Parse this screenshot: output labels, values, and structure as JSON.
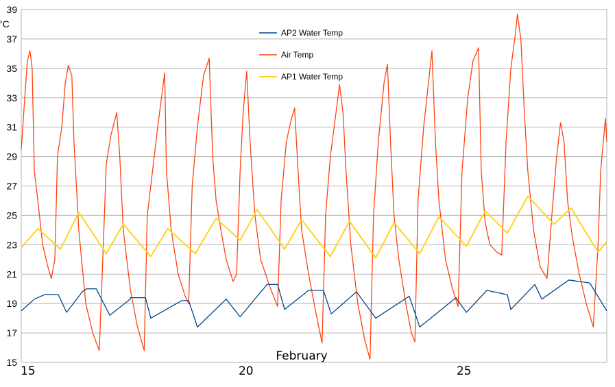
{
  "chart_data": {
    "type": "line",
    "ylabel": "°C",
    "xlabel": "February",
    "ylim": [
      15,
      39
    ],
    "yticks": [
      15,
      17,
      19,
      21,
      23,
      25,
      27,
      29,
      31,
      33,
      35,
      37,
      39
    ],
    "xlim": [
      15,
      28.43
    ],
    "xticks": [
      15,
      20,
      25
    ],
    "grid": true,
    "legend_position": "top-center",
    "series": [
      {
        "name": "AP2 Water Temp",
        "color": "#004586",
        "points": [
          [
            15,
            18.5
          ],
          [
            15.3,
            19.3
          ],
          [
            15.53,
            19.6
          ],
          [
            15.85,
            19.6
          ],
          [
            16.04,
            18.4
          ],
          [
            16.4,
            19.8
          ],
          [
            16.5,
            20
          ],
          [
            16.72,
            20
          ],
          [
            17.03,
            18.2
          ],
          [
            17.5,
            19.3
          ],
          [
            17.5,
            19.4
          ],
          [
            17.85,
            19.4
          ],
          [
            17.97,
            18
          ],
          [
            18.68,
            19.2
          ],
          [
            18.84,
            19.2
          ],
          [
            19.04,
            17.4
          ],
          [
            19.7,
            19.3
          ],
          [
            20.02,
            18.1
          ],
          [
            20.64,
            20.3
          ],
          [
            20.88,
            20.3
          ],
          [
            21.04,
            18.6
          ],
          [
            21.59,
            19.9
          ],
          [
            21.93,
            19.9
          ],
          [
            22.11,
            18.3
          ],
          [
            22.69,
            19.8
          ],
          [
            23.13,
            18
          ],
          [
            23.9,
            19.5
          ],
          [
            24.14,
            17.4
          ],
          [
            24.97,
            19.4
          ],
          [
            25.21,
            18.4
          ],
          [
            25.68,
            19.9
          ],
          [
            26.15,
            19.6
          ],
          [
            26.23,
            18.6
          ],
          [
            26.78,
            20.3
          ],
          [
            26.94,
            19.3
          ],
          [
            27.56,
            20.6
          ],
          [
            28.04,
            20.4
          ],
          [
            28.43,
            18.5
          ]
        ]
      },
      {
        "name": "Air Temp",
        "color": "#ff420e",
        "points": [
          [
            15,
            29.5
          ],
          [
            15.08,
            33
          ],
          [
            15.14,
            35.5
          ],
          [
            15.2,
            36.2
          ],
          [
            15.25,
            35
          ],
          [
            15.3,
            28
          ],
          [
            15.38,
            26
          ],
          [
            15.49,
            23
          ],
          [
            15.61,
            21.5
          ],
          [
            15.69,
            20.7
          ],
          [
            15.77,
            22
          ],
          [
            15.83,
            29
          ],
          [
            15.93,
            31
          ],
          [
            16.01,
            34
          ],
          [
            16.08,
            35.2
          ],
          [
            16.16,
            34.5
          ],
          [
            16.21,
            30
          ],
          [
            16.32,
            24
          ],
          [
            16.48,
            19
          ],
          [
            16.64,
            17
          ],
          [
            16.79,
            15.8
          ],
          [
            16.87,
            22
          ],
          [
            16.95,
            28.5
          ],
          [
            17.06,
            30.5
          ],
          [
            17.19,
            32
          ],
          [
            17.26,
            29
          ],
          [
            17.34,
            24
          ],
          [
            17.5,
            20
          ],
          [
            17.66,
            17.5
          ],
          [
            17.82,
            15.8
          ],
          [
            17.89,
            25
          ],
          [
            18.01,
            28
          ],
          [
            18.13,
            31
          ],
          [
            18.29,
            34.7
          ],
          [
            18.33,
            28
          ],
          [
            18.44,
            24
          ],
          [
            18.6,
            21
          ],
          [
            18.76,
            19.5
          ],
          [
            18.84,
            19
          ],
          [
            18.92,
            27
          ],
          [
            19.04,
            31
          ],
          [
            19.18,
            34.5
          ],
          [
            19.31,
            35.7
          ],
          [
            19.39,
            29
          ],
          [
            19.47,
            26
          ],
          [
            19.58,
            24
          ],
          [
            19.7,
            22
          ],
          [
            19.86,
            20.5
          ],
          [
            19.94,
            21
          ],
          [
            20.02,
            28
          ],
          [
            20.09,
            32
          ],
          [
            20.17,
            34.8
          ],
          [
            20.25,
            30
          ],
          [
            20.36,
            25
          ],
          [
            20.49,
            22
          ],
          [
            20.72,
            20
          ],
          [
            20.88,
            18.8
          ],
          [
            20.96,
            26
          ],
          [
            21.08,
            30
          ],
          [
            21.19,
            31.5
          ],
          [
            21.27,
            32.3
          ],
          [
            21.35,
            28
          ],
          [
            21.43,
            24
          ],
          [
            21.59,
            21
          ],
          [
            21.75,
            18.5
          ],
          [
            21.9,
            16.3
          ],
          [
            21.98,
            25
          ],
          [
            22.09,
            29
          ],
          [
            22.22,
            32
          ],
          [
            22.3,
            33.9
          ],
          [
            22.38,
            32
          ],
          [
            22.45,
            28
          ],
          [
            22.56,
            23
          ],
          [
            22.72,
            19
          ],
          [
            22.88,
            16.5
          ],
          [
            23.0,
            15.2
          ],
          [
            23.08,
            25
          ],
          [
            23.19,
            30
          ],
          [
            23.32,
            34
          ],
          [
            23.4,
            35.3
          ],
          [
            23.47,
            30
          ],
          [
            23.55,
            25
          ],
          [
            23.66,
            22
          ],
          [
            23.82,
            19
          ],
          [
            23.95,
            17
          ],
          [
            24.03,
            16.4
          ],
          [
            24.1,
            26
          ],
          [
            24.23,
            31
          ],
          [
            24.34,
            34
          ],
          [
            24.42,
            36.2
          ],
          [
            24.5,
            30
          ],
          [
            24.58,
            26
          ],
          [
            24.73,
            22
          ],
          [
            24.89,
            20
          ],
          [
            25.02,
            18.8
          ],
          [
            25.11,
            28
          ],
          [
            25.24,
            33
          ],
          [
            25.36,
            35.5
          ],
          [
            25.49,
            36.4
          ],
          [
            25.55,
            28
          ],
          [
            25.64,
            24.5
          ],
          [
            25.75,
            23
          ],
          [
            25.91,
            22.5
          ],
          [
            26.02,
            22.3
          ],
          [
            26.12,
            30
          ],
          [
            26.23,
            35
          ],
          [
            26.34,
            37.5
          ],
          [
            26.38,
            38.7
          ],
          [
            26.46,
            37
          ],
          [
            26.54,
            32
          ],
          [
            26.62,
            28
          ],
          [
            26.75,
            24
          ],
          [
            26.9,
            21.5
          ],
          [
            27.06,
            20.7
          ],
          [
            27.17,
            25
          ],
          [
            27.28,
            29
          ],
          [
            27.37,
            31.3
          ],
          [
            27.45,
            30
          ],
          [
            27.53,
            26
          ],
          [
            27.64,
            23.5
          ],
          [
            27.8,
            21
          ],
          [
            27.96,
            19
          ],
          [
            28.12,
            17.4
          ],
          [
            28.23,
            23
          ],
          [
            28.29,
            28
          ],
          [
            28.35,
            30
          ],
          [
            28.4,
            31.6
          ],
          [
            28.43,
            30
          ]
        ]
      },
      {
        "name": "AP1 Water Temp",
        "color": "#ffd320",
        "points": [
          [
            15,
            22.8
          ],
          [
            15.38,
            24.1
          ],
          [
            15.9,
            22.7
          ],
          [
            16.32,
            25.2
          ],
          [
            16.95,
            22.4
          ],
          [
            17.34,
            24.4
          ],
          [
            17.97,
            22.2
          ],
          [
            18.36,
            24.1
          ],
          [
            18.99,
            22.4
          ],
          [
            19.47,
            24.8
          ],
          [
            20.02,
            23.3
          ],
          [
            20.41,
            25.4
          ],
          [
            21.04,
            22.7
          ],
          [
            21.43,
            24.7
          ],
          [
            22.09,
            22.2
          ],
          [
            22.53,
            24.6
          ],
          [
            23.13,
            22.1
          ],
          [
            23.55,
            24.5
          ],
          [
            24.14,
            22.4
          ],
          [
            24.58,
            24.9
          ],
          [
            25.21,
            22.9
          ],
          [
            25.64,
            25.3
          ],
          [
            26.15,
            23.8
          ],
          [
            26.62,
            26.3
          ],
          [
            27.22,
            24.4
          ],
          [
            27.61,
            25.5
          ],
          [
            28.23,
            22.5
          ],
          [
            28.43,
            23.2
          ]
        ]
      }
    ]
  }
}
